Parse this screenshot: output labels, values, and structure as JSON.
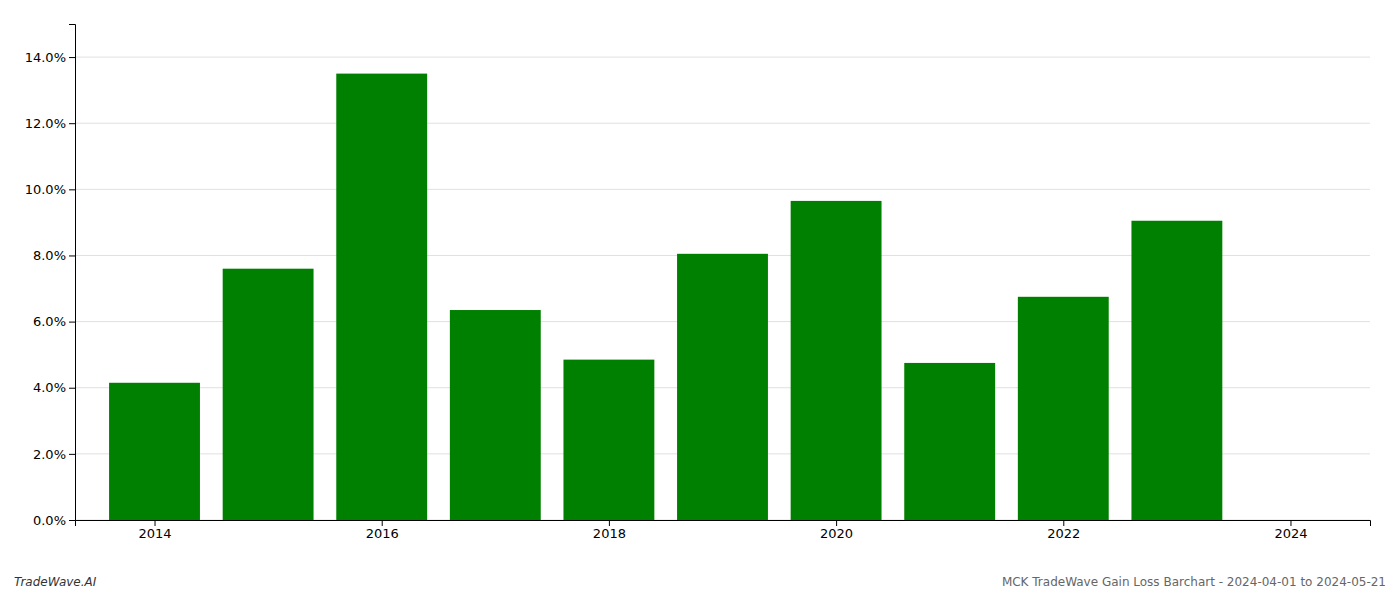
{
  "chart_data": {
    "type": "bar",
    "x": [
      2014,
      2015,
      2016,
      2017,
      2018,
      2019,
      2020,
      2021,
      2022,
      2023
    ],
    "values": [
      0.0415,
      0.076,
      0.135,
      0.0635,
      0.0485,
      0.0805,
      0.0965,
      0.0475,
      0.0675,
      0.0905
    ],
    "color": "#008000",
    "xlim": [
      2013.3,
      2024.7
    ],
    "xticks": [
      2014,
      2016,
      2018,
      2020,
      2022,
      2024
    ],
    "ylim": [
      0,
      0.15
    ],
    "yticks": [
      {
        "value": 0.0,
        "label": "0.0%"
      },
      {
        "value": 0.02,
        "label": "2.0%"
      },
      {
        "value": 0.04,
        "label": "4.0%"
      },
      {
        "value": 0.06,
        "label": "6.0%"
      },
      {
        "value": 0.08,
        "label": "8.0%"
      },
      {
        "value": 0.1,
        "label": "10.0%"
      },
      {
        "value": 0.12,
        "label": "12.0%"
      },
      {
        "value": 0.14,
        "label": "14.0%"
      }
    ],
    "grid": true,
    "annotations": [
      "TradeWave.AI",
      "MCK TradeWave Gain Loss Barchart - 2024-04-01 to 2024-05-21"
    ]
  }
}
